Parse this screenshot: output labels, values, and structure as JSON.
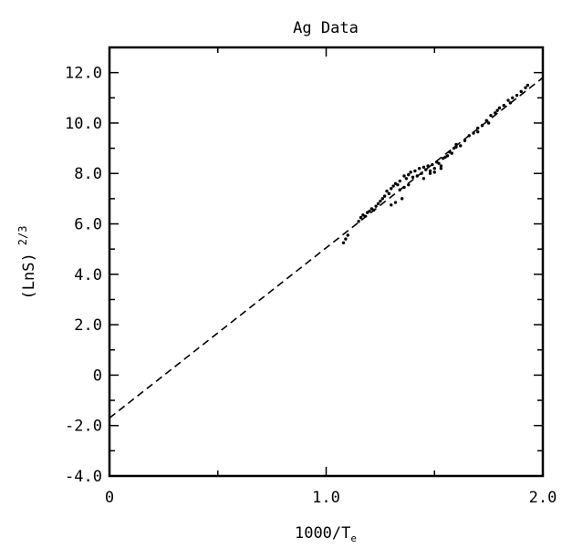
{
  "chart_data": {
    "type": "scatter",
    "title": "Ag Data",
    "xlabel": "1000/T",
    "xlabel_subscript": "e",
    "ylabel": "(LnS)",
    "ylabel_superscript": "2/3",
    "xlim": [
      0,
      2.0
    ],
    "ylim": [
      -4.0,
      13.0
    ],
    "x_ticks": [
      {
        "value": 0,
        "label": "0"
      },
      {
        "value": 1.0,
        "label": "1.0"
      },
      {
        "value": 2.0,
        "label": "2.0"
      }
    ],
    "x_minor_ticks": [
      0.5,
      1.5
    ],
    "y_ticks": [
      {
        "value": -4.0,
        "label": "-4.0"
      },
      {
        "value": -2.0,
        "label": "-2.0"
      },
      {
        "value": 0,
        "label": "0"
      },
      {
        "value": 2.0,
        "label": "2.0"
      },
      {
        "value": 4.0,
        "label": "4.0"
      },
      {
        "value": 6.0,
        "label": "6.0"
      },
      {
        "value": 8.0,
        "label": "8.0"
      },
      {
        "value": 10.0,
        "label": "10.0"
      },
      {
        "value": 12.0,
        "label": "12.0"
      }
    ],
    "y_minor_ticks": [
      -3,
      -1,
      1,
      3,
      5,
      7,
      9,
      11
    ],
    "grid": false,
    "fit_line": {
      "style": "dashed",
      "x": [
        0,
        2.0
      ],
      "y": [
        -1.7,
        11.8
      ]
    },
    "series": [
      {
        "marker": "dot",
        "points": [
          [
            1.08,
            5.25
          ],
          [
            1.09,
            5.4
          ],
          [
            1.1,
            5.55
          ],
          [
            1.15,
            6.1
          ],
          [
            1.16,
            6.25
          ],
          [
            1.17,
            6.35
          ],
          [
            1.18,
            6.3
          ],
          [
            1.19,
            6.45
          ],
          [
            1.2,
            6.5
          ],
          [
            1.21,
            6.6
          ],
          [
            1.22,
            6.55
          ],
          [
            1.23,
            6.7
          ],
          [
            1.24,
            6.8
          ],
          [
            1.25,
            6.9
          ],
          [
            1.26,
            7.0
          ],
          [
            1.27,
            7.1
          ],
          [
            1.28,
            7.3
          ],
          [
            1.29,
            7.2
          ],
          [
            1.3,
            7.4
          ],
          [
            1.31,
            7.5
          ],
          [
            1.32,
            7.6
          ],
          [
            1.33,
            7.55
          ],
          [
            1.34,
            7.7
          ],
          [
            1.3,
            6.75
          ],
          [
            1.32,
            6.85
          ],
          [
            1.35,
            7.0
          ],
          [
            1.36,
            7.9
          ],
          [
            1.37,
            7.8
          ],
          [
            1.38,
            7.95
          ],
          [
            1.39,
            8.05
          ],
          [
            1.4,
            7.85
          ],
          [
            1.41,
            8.1
          ],
          [
            1.42,
            7.9
          ],
          [
            1.43,
            8.2
          ],
          [
            1.44,
            8.0
          ],
          [
            1.45,
            8.25
          ],
          [
            1.46,
            8.15
          ],
          [
            1.47,
            8.3
          ],
          [
            1.48,
            8.1
          ],
          [
            1.49,
            8.35
          ],
          [
            1.5,
            8.2
          ],
          [
            1.51,
            8.45
          ],
          [
            1.52,
            8.4
          ],
          [
            1.53,
            8.3
          ],
          [
            1.54,
            8.6
          ],
          [
            1.55,
            8.65
          ],
          [
            1.56,
            8.7
          ],
          [
            1.57,
            8.85
          ],
          [
            1.58,
            8.8
          ],
          [
            1.59,
            9.0
          ],
          [
            1.6,
            9.05
          ],
          [
            1.62,
            9.1
          ],
          [
            1.64,
            9.3
          ],
          [
            1.66,
            9.5
          ],
          [
            1.68,
            9.6
          ],
          [
            1.7,
            9.8
          ],
          [
            1.72,
            9.9
          ],
          [
            1.74,
            10.1
          ],
          [
            1.76,
            10.3
          ],
          [
            1.78,
            10.4
          ],
          [
            1.8,
            10.6
          ],
          [
            1.82,
            10.7
          ],
          [
            1.84,
            10.9
          ],
          [
            1.86,
            11.0
          ],
          [
            1.88,
            11.1
          ],
          [
            1.9,
            11.25
          ],
          [
            1.92,
            11.4
          ],
          [
            1.93,
            11.5
          ],
          [
            1.45,
            7.8
          ],
          [
            1.48,
            8.0
          ],
          [
            1.5,
            8.05
          ],
          [
            1.53,
            8.2
          ],
          [
            1.7,
            9.65
          ],
          [
            1.75,
            10.0
          ],
          [
            1.79,
            10.5
          ],
          [
            1.85,
            10.8
          ],
          [
            1.6,
            9.15
          ],
          [
            1.38,
            7.55
          ],
          [
            1.36,
            7.45
          ],
          [
            1.34,
            7.35
          ]
        ]
      }
    ]
  }
}
